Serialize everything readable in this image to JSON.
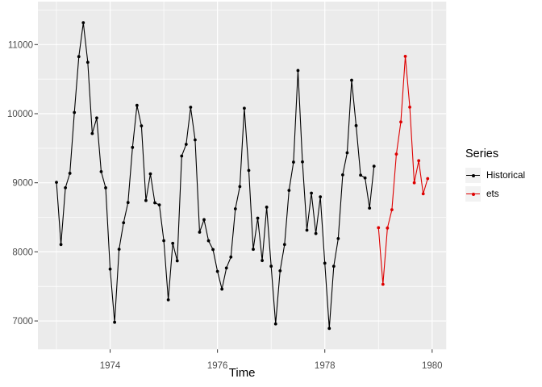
{
  "chart": {
    "colors": {
      "background": "#FFFFFF",
      "panel_bg": "#EBEBEB",
      "grid": "#FFFFFF",
      "tick_mark": "#333333",
      "tick_label": "#4D4D4D",
      "axis_title": "#000000",
      "legend_key_bg": "#F2F2F2",
      "historical": "#000000",
      "ets": "#DE0000"
    },
    "legend": {
      "title": "Series"
    }
  },
  "chart_data": {
    "type": "line",
    "title": "",
    "xlabel": "Time",
    "ylabel": "",
    "x_ticks": [
      1974,
      1976,
      1978,
      1980
    ],
    "x_tick_labels": [
      "1974",
      "1976",
      "1978",
      "1980"
    ],
    "x_minor_ticks": [
      1973,
      1975,
      1977,
      1979
    ],
    "y_ticks": [
      7000,
      8000,
      9000,
      10000,
      11000
    ],
    "y_tick_labels": [
      "7000",
      "8000",
      "9000",
      "10000",
      "11000"
    ],
    "y_minor_ticks": [
      7500,
      8500,
      9500,
      10500,
      11500
    ],
    "x_range": [
      1972.654,
      1980.263
    ],
    "y_range": [
      6589,
      11622
    ],
    "grid": true,
    "legend_position": "right",
    "frequency": "monthly",
    "series": [
      {
        "name": "Historical",
        "color": "#000000",
        "start_year": 1973,
        "start_month": 1,
        "values": [
          9007,
          8106,
          8928,
          9137,
          10017,
          10826,
          11317,
          10744,
          9713,
          9938,
          9161,
          8927,
          7750,
          6981,
          8038,
          8422,
          8714,
          9512,
          10120,
          9823,
          8743,
          9129,
          8710,
          8680,
          8162,
          7306,
          8124,
          7870,
          9387,
          9556,
          10093,
          9620,
          8285,
          8466,
          8160,
          8034,
          7717,
          7461,
          7767,
          7925,
          8623,
          8945,
          10078,
          9179,
          8037,
          8488,
          7874,
          8647,
          7792,
          6957,
          7726,
          8106,
          8890,
          9299,
          10625,
          9302,
          8314,
          8850,
          8265,
          8796,
          7836,
          6892,
          7791,
          8192,
          9115,
          9434,
          10484,
          9827,
          9110,
          9070,
          8633,
          9240
        ]
      },
      {
        "name": "ets",
        "color": "#DE0000",
        "start_year": 1979,
        "start_month": 1,
        "values": [
          8350,
          7530,
          8345,
          8610,
          9415,
          9880,
          10830,
          10095,
          9000,
          9320,
          8840,
          9060
        ]
      }
    ]
  }
}
